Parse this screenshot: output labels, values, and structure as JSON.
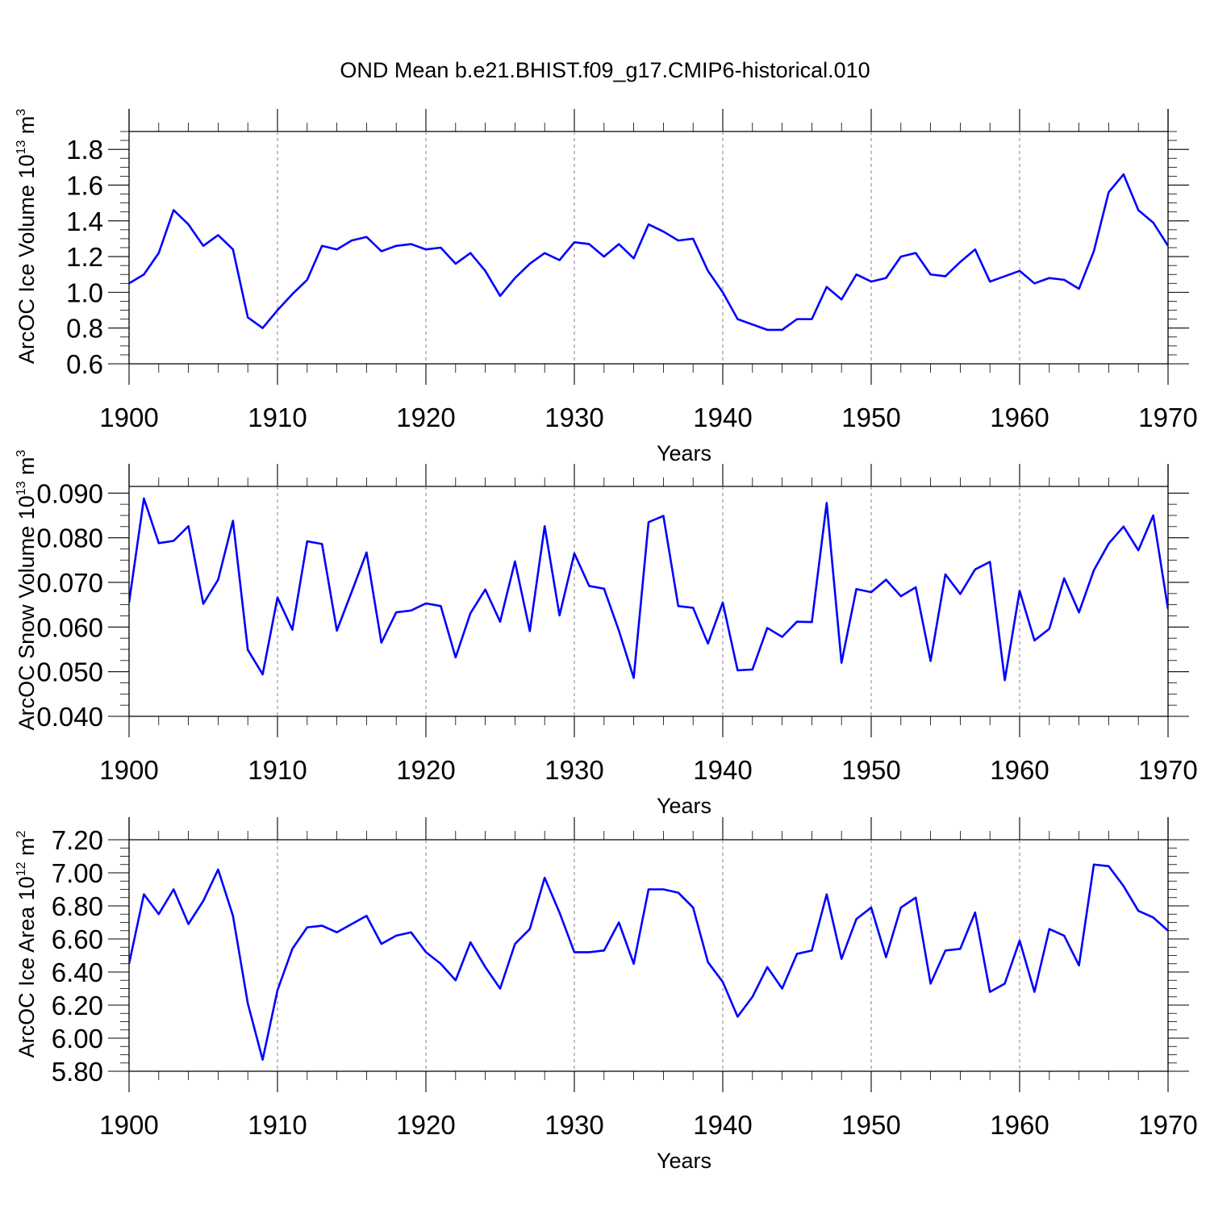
{
  "title": "OND Mean b.e21.BHIST.f09_g17.CMIP6-historical.010",
  "colors": {
    "line": "#0000ff",
    "grid": "#808080",
    "axis": "#000000"
  },
  "chart_data": [
    {
      "type": "line",
      "xlabel": "Years",
      "ylabel": {
        "text": "ArcOC Ice Volume 10",
        "sup": "13",
        "unit": " m",
        "unit_sup": "3"
      },
      "xlim": [
        1900,
        1970
      ],
      "ylim": [
        0.6,
        1.9
      ],
      "x_ticks": [
        1900,
        1910,
        1920,
        1930,
        1940,
        1950,
        1960,
        1970
      ],
      "y_ticks": [
        0.6,
        0.8,
        1.0,
        1.2,
        1.4,
        1.6,
        1.8
      ],
      "y_tick_labels": [
        "0.6",
        "0.8",
        "1.0",
        "1.2",
        "1.4",
        "1.6",
        "1.8"
      ],
      "x_grid": "dashed at major x ticks",
      "x": [
        1900,
        1901,
        1902,
        1903,
        1904,
        1905,
        1906,
        1907,
        1908,
        1909,
        1910,
        1911,
        1912,
        1913,
        1914,
        1915,
        1916,
        1917,
        1918,
        1919,
        1920,
        1921,
        1922,
        1923,
        1924,
        1925,
        1926,
        1927,
        1928,
        1929,
        1930,
        1931,
        1932,
        1933,
        1934,
        1935,
        1936,
        1937,
        1938,
        1939,
        1940,
        1941,
        1942,
        1943,
        1944,
        1945,
        1946,
        1947,
        1948,
        1949,
        1950,
        1951,
        1952,
        1953,
        1954,
        1955,
        1956,
        1957,
        1958,
        1959,
        1960,
        1961,
        1962,
        1963,
        1964,
        1965,
        1966,
        1967,
        1968,
        1969,
        1970
      ],
      "values": [
        1.05,
        1.1,
        1.22,
        1.46,
        1.38,
        1.26,
        1.32,
        1.24,
        0.86,
        0.8,
        0.9,
        0.99,
        1.07,
        1.26,
        1.24,
        1.29,
        1.31,
        1.23,
        1.26,
        1.27,
        1.24,
        1.25,
        1.16,
        1.22,
        1.12,
        0.98,
        1.08,
        1.16,
        1.22,
        1.18,
        1.28,
        1.27,
        1.2,
        1.27,
        1.19,
        1.38,
        1.34,
        1.29,
        1.3,
        1.12,
        1.0,
        0.85,
        0.82,
        0.79,
        0.79,
        0.85,
        0.85,
        1.03,
        0.96,
        1.1,
        1.06,
        1.08,
        1.2,
        1.22,
        1.1,
        1.09,
        1.17,
        1.24,
        1.06,
        1.09,
        1.12,
        1.05,
        1.08,
        1.07,
        1.02,
        1.23,
        1.56,
        1.66,
        1.46,
        1.39,
        1.26
      ]
    },
    {
      "type": "line",
      "xlabel": "Years",
      "ylabel": {
        "text": "ArcOC Snow Volume 10",
        "sup": "13",
        "unit": " m",
        "unit_sup": "3"
      },
      "xlim": [
        1900,
        1970
      ],
      "ylim": [
        0.04,
        0.0915
      ],
      "x_ticks": [
        1900,
        1910,
        1920,
        1930,
        1940,
        1950,
        1960,
        1970
      ],
      "y_ticks": [
        0.04,
        0.05,
        0.06,
        0.07,
        0.08,
        0.09
      ],
      "y_tick_labels": [
        "0.040",
        "0.050",
        "0.060",
        "0.070",
        "0.080",
        "0.090"
      ],
      "x_grid": "dashed at major x ticks",
      "x": [
        1900,
        1901,
        1902,
        1903,
        1904,
        1905,
        1906,
        1907,
        1908,
        1909,
        1910,
        1911,
        1912,
        1913,
        1914,
        1915,
        1916,
        1917,
        1918,
        1919,
        1920,
        1921,
        1922,
        1923,
        1924,
        1925,
        1926,
        1927,
        1928,
        1929,
        1930,
        1931,
        1932,
        1933,
        1934,
        1935,
        1936,
        1937,
        1938,
        1939,
        1940,
        1941,
        1942,
        1943,
        1944,
        1945,
        1946,
        1947,
        1948,
        1949,
        1950,
        1951,
        1952,
        1953,
        1954,
        1955,
        1956,
        1957,
        1958,
        1959,
        1960,
        1961,
        1962,
        1963,
        1964,
        1965,
        1966,
        1967,
        1968,
        1969,
        1970
      ],
      "values": [
        0.0655,
        0.0888,
        0.0788,
        0.0793,
        0.0826,
        0.0652,
        0.0706,
        0.0838,
        0.0549,
        0.0494,
        0.0666,
        0.0594,
        0.0792,
        0.0786,
        0.0592,
        0.0679,
        0.0767,
        0.0565,
        0.0633,
        0.0637,
        0.0653,
        0.0647,
        0.0532,
        0.0631,
        0.0684,
        0.0612,
        0.0747,
        0.0591,
        0.0826,
        0.0626,
        0.0765,
        0.0692,
        0.0686,
        0.0592,
        0.0486,
        0.0835,
        0.0849,
        0.0647,
        0.0643,
        0.0563,
        0.0655,
        0.0503,
        0.0505,
        0.0598,
        0.0578,
        0.0612,
        0.0611,
        0.0878,
        0.052,
        0.0685,
        0.0678,
        0.0706,
        0.0669,
        0.0689,
        0.0524,
        0.0718,
        0.0674,
        0.0729,
        0.0746,
        0.0481,
        0.0681,
        0.057,
        0.0596,
        0.0709,
        0.0633,
        0.0727,
        0.0787,
        0.0825,
        0.0772,
        0.085,
        0.064
      ]
    },
    {
      "type": "line",
      "xlabel": "Years",
      "ylabel": {
        "text": "ArcOC Ice Area 10",
        "sup": "12",
        "unit": " m",
        "unit_sup": "2"
      },
      "xlim": [
        1900,
        1970
      ],
      "ylim": [
        5.8,
        7.2
      ],
      "x_ticks": [
        1900,
        1910,
        1920,
        1930,
        1940,
        1950,
        1960,
        1970
      ],
      "y_ticks": [
        5.8,
        6.0,
        6.2,
        6.4,
        6.6,
        6.8,
        7.0,
        7.2
      ],
      "y_tick_labels": [
        "5.80",
        "6.00",
        "6.20",
        "6.40",
        "6.60",
        "6.80",
        "7.00",
        "7.20"
      ],
      "x_grid": "dashed at major x ticks",
      "x": [
        1900,
        1901,
        1902,
        1903,
        1904,
        1905,
        1906,
        1907,
        1908,
        1909,
        1910,
        1911,
        1912,
        1913,
        1914,
        1915,
        1916,
        1917,
        1918,
        1919,
        1920,
        1921,
        1922,
        1923,
        1924,
        1925,
        1926,
        1927,
        1928,
        1929,
        1930,
        1931,
        1932,
        1933,
        1934,
        1935,
        1936,
        1937,
        1938,
        1939,
        1940,
        1941,
        1942,
        1943,
        1944,
        1945,
        1946,
        1947,
        1948,
        1949,
        1950,
        1951,
        1952,
        1953,
        1954,
        1955,
        1956,
        1957,
        1958,
        1959,
        1960,
        1961,
        1962,
        1963,
        1964,
        1965,
        1966,
        1967,
        1968,
        1969,
        1970
      ],
      "values": [
        6.45,
        6.87,
        6.75,
        6.9,
        6.69,
        6.83,
        7.02,
        6.74,
        6.21,
        5.87,
        6.29,
        6.54,
        6.67,
        6.68,
        6.64,
        6.69,
        6.74,
        6.57,
        6.62,
        6.64,
        6.52,
        6.45,
        6.35,
        6.58,
        6.43,
        6.3,
        6.57,
        6.66,
        6.97,
        6.76,
        6.52,
        6.52,
        6.53,
        6.7,
        6.45,
        6.9,
        6.9,
        6.88,
        6.79,
        6.46,
        6.34,
        6.13,
        6.25,
        6.43,
        6.3,
        6.51,
        6.53,
        6.87,
        6.48,
        6.72,
        6.79,
        6.49,
        6.79,
        6.85,
        6.33,
        6.53,
        6.54,
        6.76,
        6.28,
        6.33,
        6.59,
        6.28,
        6.66,
        6.62,
        6.44,
        7.05,
        7.04,
        6.92,
        6.77,
        6.73,
        6.65
      ]
    }
  ]
}
